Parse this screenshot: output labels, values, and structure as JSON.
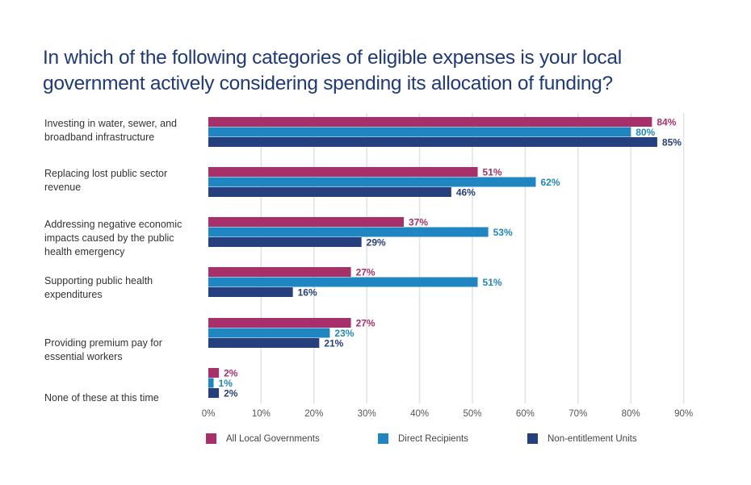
{
  "title_line1": "In which of the following categories of eligible expenses is your local",
  "title_line2": "government actively considering spending its allocation of funding?",
  "chart_data": {
    "type": "bar",
    "orientation": "horizontal",
    "title": "In which of the following categories of eligible expenses is your local government actively considering spending its allocation of funding?",
    "xlabel": "",
    "ylabel": "",
    "xlim": [
      0,
      90
    ],
    "x_ticks": [
      "0%",
      "10%",
      "20%",
      "30%",
      "40%",
      "50%",
      "60%",
      "70%",
      "80%",
      "90%"
    ],
    "grid": "vertical",
    "legend_position": "bottom",
    "categories": [
      [
        "Investing in water, sewer, and",
        "broadband infrastructure"
      ],
      [
        "Replacing lost public sector",
        "revenue"
      ],
      [
        "Addressing negative economic",
        "impacts caused by the public",
        "health emergency"
      ],
      [
        "Supporting public health",
        "expenditures"
      ],
      [
        "Providing premium pay for",
        "essential workers"
      ],
      [
        "None of these at this time"
      ]
    ],
    "series": [
      {
        "name": "All Local Governments",
        "color": "#a8306a",
        "values": [
          84,
          51,
          37,
          27,
          27,
          2
        ],
        "labels": [
          "84%",
          "51%",
          "37%",
          "27%",
          "27%",
          "2%"
        ]
      },
      {
        "name": "Direct Recipients",
        "color": "#1f86c1",
        "values": [
          80,
          62,
          53,
          51,
          23,
          1
        ],
        "labels": [
          "80%",
          "62%",
          "53%",
          "51%",
          "23%",
          "1%"
        ]
      },
      {
        "name": "Non-entitlement Units",
        "color": "#263f7d",
        "values": [
          85,
          46,
          29,
          16,
          21,
          2
        ],
        "labels": [
          "85%",
          "46%",
          "29%",
          "16%",
          "21%",
          "2%"
        ]
      }
    ]
  }
}
